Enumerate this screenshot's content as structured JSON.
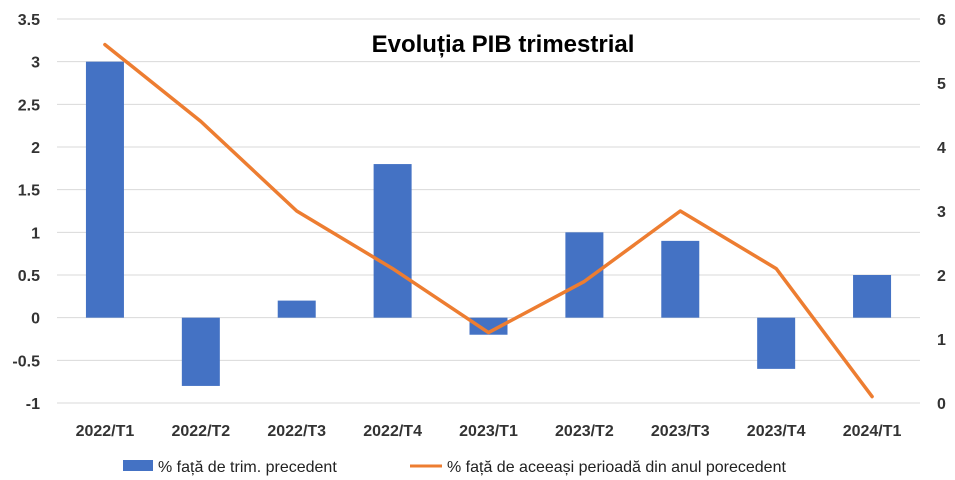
{
  "chart_data": {
    "type": "bar+line",
    "title": "Evoluția PIB trimestrial",
    "categories": [
      "2022/T1",
      "2022/T2",
      "2022/T3",
      "2022/T4",
      "2023/T1",
      "2023/T2",
      "2023/T3",
      "2023/T4",
      "2024/T1"
    ],
    "series": [
      {
        "name": "% față de trim. precedent",
        "type": "bar",
        "axis": "left",
        "color": "#4472C4",
        "values": [
          3.0,
          -0.8,
          0.2,
          1.8,
          -0.2,
          1.0,
          0.9,
          -0.6,
          0.5
        ]
      },
      {
        "name": "% față de aceeași perioadă din anul porecedent",
        "type": "line",
        "axis": "right",
        "color": "#ED7D31",
        "values": [
          5.6,
          4.4,
          3.0,
          2.1,
          1.1,
          1.9,
          3.0,
          2.1,
          0.1
        ]
      }
    ],
    "y_left": {
      "min": -1,
      "max": 3.5,
      "ticks": [
        "3.5",
        "3",
        "2.5",
        "2",
        "1.5",
        "1",
        "0.5",
        "0",
        "-0.5",
        "-1"
      ]
    },
    "y_right": {
      "min": 0,
      "max": 6,
      "ticks": [
        "6",
        "5",
        "4",
        "3",
        "2",
        "1",
        "0"
      ]
    },
    "grid": true,
    "legend": "bottom"
  }
}
